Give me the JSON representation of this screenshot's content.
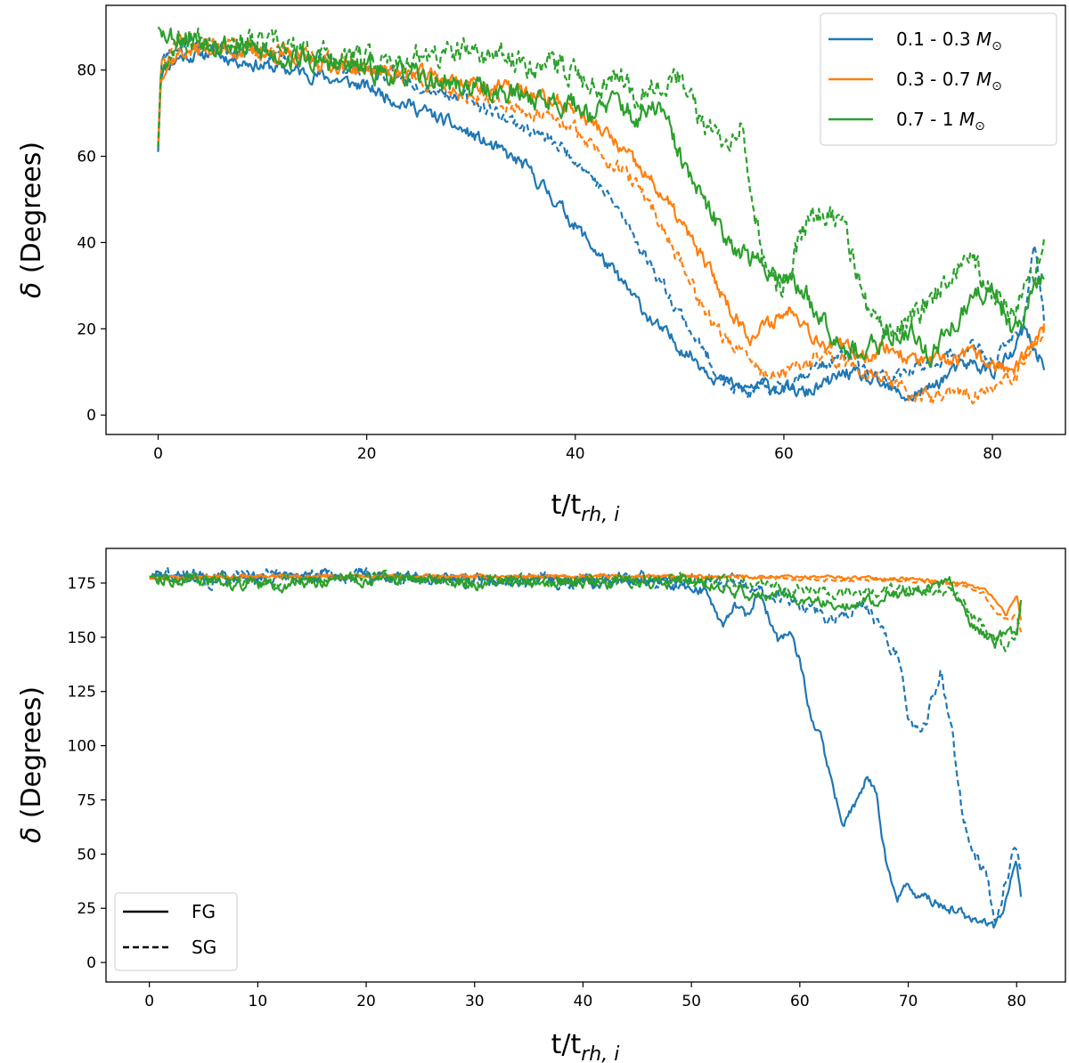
{
  "chart_data": [
    {
      "type": "line",
      "xlabel_main": "t/t",
      "xlabel_sub": "rh, i",
      "ylabel_symbol": "δ",
      "ylabel_text": " (Degrees)",
      "xlim": [
        -5,
        87
      ],
      "ylim": [
        -4.5,
        95
      ],
      "xticks": [
        0,
        20,
        40,
        60,
        80
      ],
      "yticks": [
        0,
        20,
        40,
        60,
        80
      ],
      "legend_loc": "upper right",
      "legend": [
        {
          "label": "0.1 - 0.3 ",
          "symbol": "M",
          "sub": "⊙",
          "color": "#1f77b4"
        },
        {
          "label": "0.3 - 0.7 ",
          "symbol": "M",
          "sub": "⊙",
          "color": "#ff7f0e"
        },
        {
          "label": "0.7 - 1 ",
          "symbol": "M",
          "sub": "⊙",
          "color": "#2ca02c"
        }
      ],
      "series": [
        {
          "name": "0.1 - 0.3 FG",
          "color": "#1f77b4",
          "dash": false,
          "seed": 11,
          "noise": 1.6,
          "x": [
            0,
            0.3,
            2,
            5,
            10,
            15,
            20,
            25,
            30,
            35,
            38,
            42,
            45,
            48,
            51,
            54,
            56,
            58,
            60,
            62,
            64,
            66,
            68,
            70,
            72,
            74,
            76,
            78,
            80,
            82,
            83,
            84,
            85
          ],
          "y": [
            61,
            80,
            83,
            84,
            81,
            79,
            76,
            71,
            65,
            58,
            50,
            38,
            29,
            20,
            14,
            8,
            6,
            7,
            6,
            5,
            7,
            10,
            8,
            6,
            4,
            6,
            10,
            12,
            10,
            14,
            20,
            15,
            12
          ]
        },
        {
          "name": "0.1 - 0.3 SG",
          "color": "#1f77b4",
          "dash": true,
          "seed": 23,
          "noise": 1.6,
          "x": [
            0,
            0.3,
            2,
            5,
            10,
            15,
            20,
            25,
            30,
            35,
            40,
            44,
            47,
            50,
            53,
            55,
            57,
            60,
            62,
            64,
            66,
            68,
            70,
            72,
            74,
            76,
            78,
            80,
            82,
            83,
            84,
            85
          ],
          "y": [
            62,
            82,
            86,
            86,
            84,
            82,
            80,
            77,
            73,
            67,
            60,
            48,
            36,
            24,
            12,
            6,
            5,
            7,
            10,
            12,
            14,
            10,
            8,
            10,
            12,
            14,
            16,
            12,
            18,
            22,
            40,
            20
          ]
        },
        {
          "name": "0.3 - 0.7 FG",
          "color": "#ff7f0e",
          "dash": false,
          "seed": 37,
          "noise": 1.8,
          "x": [
            0,
            0.3,
            2,
            5,
            10,
            15,
            20,
            25,
            30,
            35,
            40,
            43,
            45,
            48,
            50,
            53,
            55,
            57,
            59,
            61,
            63,
            65,
            68,
            70,
            72,
            75,
            78,
            80,
            82,
            84,
            85
          ],
          "y": [
            62,
            80,
            84,
            85,
            84,
            82,
            80,
            79,
            77,
            75,
            71,
            65,
            60,
            52,
            45,
            33,
            24,
            18,
            22,
            25,
            18,
            16,
            14,
            16,
            13,
            12,
            14,
            12,
            10,
            16,
            20
          ]
        },
        {
          "name": "0.3 - 0.7 SG",
          "color": "#ff7f0e",
          "dash": true,
          "seed": 41,
          "noise": 1.8,
          "x": [
            0,
            0.3,
            2,
            5,
            10,
            15,
            20,
            25,
            30,
            35,
            40,
            44,
            47,
            50,
            53,
            55,
            58,
            60,
            62,
            64,
            66,
            68,
            70,
            72,
            75,
            78,
            80,
            82,
            84,
            85
          ],
          "y": [
            63,
            82,
            86,
            86,
            85,
            83,
            81,
            78,
            74,
            71,
            66,
            58,
            50,
            36,
            22,
            16,
            10,
            9,
            12,
            14,
            12,
            10,
            8,
            5,
            4,
            5,
            6,
            8,
            16,
            20
          ]
        },
        {
          "name": "0.7 - 1 FG",
          "color": "#2ca02c",
          "dash": false,
          "seed": 53,
          "noise": 2.6,
          "x": [
            0,
            0.3,
            2,
            5,
            10,
            15,
            20,
            25,
            30,
            35,
            40,
            42,
            44,
            46,
            48,
            50,
            52,
            54,
            56,
            58,
            60,
            62,
            64,
            66,
            68,
            70,
            72,
            74,
            76,
            78,
            80,
            82,
            84,
            85
          ],
          "y": [
            90,
            89,
            88,
            87,
            84,
            82,
            80,
            78,
            76,
            74,
            72,
            70,
            73,
            68,
            72,
            60,
            50,
            43,
            38,
            34,
            33,
            28,
            22,
            16,
            14,
            18,
            20,
            14,
            20,
            26,
            30,
            20,
            28,
            34
          ]
        },
        {
          "name": "0.7 - 1 SG",
          "color": "#2ca02c",
          "dash": true,
          "seed": 67,
          "noise": 3.0,
          "x": [
            0,
            0.3,
            2,
            5,
            10,
            15,
            20,
            25,
            30,
            35,
            40,
            42,
            44,
            46,
            48,
            50,
            52,
            54,
            56,
            57,
            58,
            60,
            62,
            64,
            66,
            68,
            70,
            72,
            74,
            76,
            78,
            80,
            82,
            84,
            85
          ],
          "y": [
            62,
            82,
            87,
            88,
            86,
            84,
            82,
            83,
            84,
            82,
            80,
            76,
            80,
            74,
            78,
            78,
            68,
            64,
            68,
            52,
            34,
            30,
            44,
            48,
            42,
            24,
            18,
            22,
            26,
            34,
            36,
            28,
            24,
            30,
            40
          ]
        }
      ]
    },
    {
      "type": "line",
      "xlabel_main": "t/t",
      "xlabel_sub": "rh, i",
      "ylabel_symbol": "δ",
      "ylabel_text": " (Degrees)",
      "xlim": [
        -4,
        84.5
      ],
      "ylim": [
        -9,
        191
      ],
      "xticks": [
        0,
        10,
        20,
        30,
        40,
        50,
        60,
        70,
        80
      ],
      "yticks": [
        0,
        25,
        50,
        75,
        100,
        125,
        150,
        175
      ],
      "legend_loc": "lower left",
      "legend": [
        {
          "label": "FG",
          "dash": false,
          "color": "#000000"
        },
        {
          "label": "SG",
          "dash": true,
          "color": "#000000"
        }
      ],
      "series": [
        {
          "name": "0.1 - 0.3 FG",
          "color": "#1f77b4",
          "dash": false,
          "seed": 71,
          "noise": 2.5,
          "x": [
            0,
            10,
            20,
            30,
            40,
            48,
            51,
            52,
            53,
            54,
            55,
            56,
            57,
            58,
            59,
            60,
            61,
            62,
            63,
            64,
            65,
            66,
            67,
            68,
            69,
            70,
            72,
            74,
            76,
            78,
            79,
            80,
            80.5
          ],
          "y": [
            178,
            178,
            178,
            177,
            176,
            175,
            172,
            165,
            155,
            168,
            158,
            170,
            160,
            148,
            152,
            138,
            115,
            102,
            82,
            62,
            72,
            85,
            80,
            45,
            30,
            35,
            28,
            25,
            20,
            15,
            30,
            45,
            25
          ]
        },
        {
          "name": "0.1 - 0.3 SG",
          "color": "#1f77b4",
          "dash": true,
          "seed": 83,
          "noise": 3.5,
          "x": [
            0,
            10,
            20,
            30,
            40,
            50,
            55,
            60,
            63,
            65,
            66,
            67,
            68,
            69,
            70,
            71,
            72,
            73,
            74,
            75,
            76,
            77,
            78,
            79,
            80,
            80.5
          ],
          "y": [
            178,
            178,
            178,
            177,
            177,
            176,
            174,
            166,
            158,
            165,
            162,
            158,
            148,
            140,
            112,
            104,
            118,
            135,
            108,
            68,
            48,
            42,
            22,
            38,
            55,
            38
          ]
        },
        {
          "name": "0.3 - 0.7 FG",
          "color": "#ff7f0e",
          "dash": false,
          "seed": 97,
          "noise": 0.8,
          "x": [
            0,
            10,
            20,
            30,
            40,
            50,
            60,
            70,
            75,
            77,
            78,
            79,
            80,
            80.5
          ],
          "y": [
            178,
            178,
            178,
            178,
            178,
            178,
            178,
            177,
            175,
            172,
            168,
            160,
            170,
            155
          ]
        },
        {
          "name": "0.3 - 0.7 SG",
          "color": "#ff7f0e",
          "dash": true,
          "seed": 101,
          "noise": 0.8,
          "x": [
            0,
            10,
            20,
            30,
            40,
            50,
            60,
            70,
            75,
            77,
            78,
            79,
            80,
            80.5
          ],
          "y": [
            177,
            178,
            178,
            178,
            178,
            178,
            177,
            176,
            174,
            170,
            162,
            158,
            160,
            150
          ]
        },
        {
          "name": "0.7 - 1 FG",
          "color": "#2ca02c",
          "dash": false,
          "seed": 113,
          "noise": 2.8,
          "x": [
            0,
            5,
            10,
            20,
            30,
            40,
            50,
            55,
            60,
            65,
            70,
            74,
            76,
            78,
            79,
            80,
            80.5
          ],
          "y": [
            178,
            176,
            174,
            177,
            175,
            175,
            176,
            170,
            168,
            165,
            170,
            175,
            155,
            148,
            152,
            150,
            170
          ]
        },
        {
          "name": "0.7 - 1 SG",
          "color": "#2ca02c",
          "dash": true,
          "seed": 127,
          "noise": 2.5,
          "x": [
            0,
            5,
            10,
            20,
            30,
            40,
            50,
            55,
            60,
            65,
            70,
            74,
            76,
            78,
            79,
            80,
            80.5
          ],
          "y": [
            178,
            177,
            176,
            178,
            176,
            176,
            177,
            175,
            172,
            170,
            172,
            172,
            160,
            150,
            145,
            150,
            168
          ]
        }
      ]
    }
  ]
}
